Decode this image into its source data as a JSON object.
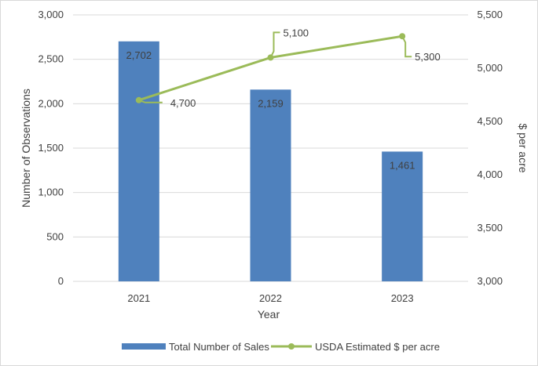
{
  "chart_data": {
    "type": "bar",
    "categories": [
      "2021",
      "2022",
      "2023"
    ],
    "series": [
      {
        "name": "Total Number of Sales",
        "type": "bar",
        "axis": "left",
        "values": [
          2702,
          2159,
          1461
        ],
        "labels": [
          "2,702",
          "2,159",
          "1,461"
        ],
        "color": "#4f81bd"
      },
      {
        "name": "USDA Estimated $ per acre",
        "type": "line",
        "axis": "right",
        "values": [
          4700,
          5100,
          5300
        ],
        "labels": [
          "4,700",
          "5,100",
          "5,300"
        ],
        "color": "#9bbb59"
      }
    ],
    "xlabel": "Year",
    "ylabel": "Number of Observations",
    "y2label": "$ per acre",
    "ylim": [
      0,
      3000
    ],
    "y2lim": [
      3000,
      5500
    ],
    "yticks": [
      "0",
      "500",
      "1,000",
      "1,500",
      "2,000",
      "2,500",
      "3,000"
    ],
    "y2ticks": [
      "3,000",
      "3,500",
      "4,000",
      "4,500",
      "5,000",
      "5,500"
    ],
    "grid": true,
    "legend_position": "bottom",
    "grid_color": "#d9d9d9"
  }
}
